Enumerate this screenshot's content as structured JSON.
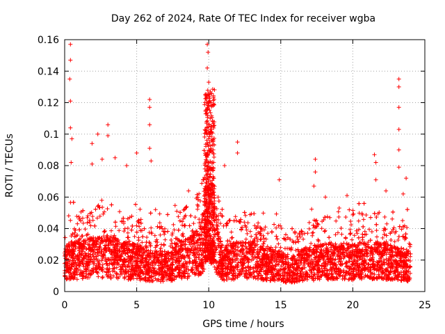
{
  "chart_data": {
    "type": "scatter",
    "title": "Day 262 of 2024, Rate Of TEC Index for receiver wgba",
    "xlabel": "GPS time / hours",
    "ylabel": "ROTI / TECUs",
    "xlim": [
      0,
      25
    ],
    "ylim": [
      0,
      0.16
    ],
    "xticks": [
      0,
      5,
      10,
      15,
      20,
      25
    ],
    "yticks": [
      0,
      0.02,
      0.04,
      0.06,
      0.08,
      0.1,
      0.12,
      0.14,
      0.16
    ],
    "xtick_labels": [
      "0",
      "5",
      "10",
      "15",
      "20",
      "25"
    ],
    "ytick_labels": [
      "0",
      "0.02",
      "0.04",
      "0.06",
      "0.08",
      "0.1",
      "0.12",
      "0.14",
      "0.16"
    ],
    "grid": true,
    "marker": "+",
    "color": "#ff0000",
    "baseline_profile": {
      "hours": [
        0,
        0.5,
        1,
        2,
        3,
        4,
        5,
        6,
        7,
        8,
        9,
        9.5,
        9.8,
        10,
        10.3,
        10.7,
        11,
        12,
        13,
        14,
        15,
        15.5,
        16,
        17,
        18,
        19,
        20,
        21,
        22,
        23,
        24
      ],
      "median": [
        0.02,
        0.022,
        0.022,
        0.024,
        0.025,
        0.022,
        0.021,
        0.018,
        0.018,
        0.022,
        0.026,
        0.03,
        0.045,
        0.055,
        0.045,
        0.025,
        0.02,
        0.022,
        0.022,
        0.02,
        0.018,
        0.015,
        0.017,
        0.02,
        0.021,
        0.022,
        0.021,
        0.022,
        0.022,
        0.02,
        0.018
      ]
    },
    "peaks": [
      {
        "x": 0.4,
        "y": 0.157
      },
      {
        "x": 0.4,
        "y": 0.147
      },
      {
        "x": 0.35,
        "y": 0.135
      },
      {
        "x": 0.4,
        "y": 0.121
      },
      {
        "x": 0.4,
        "y": 0.104
      },
      {
        "x": 0.5,
        "y": 0.097
      },
      {
        "x": 0.45,
        "y": 0.082
      },
      {
        "x": 2.3,
        "y": 0.1
      },
      {
        "x": 3.0,
        "y": 0.106
      },
      {
        "x": 3.0,
        "y": 0.099
      },
      {
        "x": 1.9,
        "y": 0.094
      },
      {
        "x": 1.9,
        "y": 0.081
      },
      {
        "x": 2.6,
        "y": 0.084
      },
      {
        "x": 3.5,
        "y": 0.085
      },
      {
        "x": 4.3,
        "y": 0.08
      },
      {
        "x": 5.0,
        "y": 0.088
      },
      {
        "x": 5.9,
        "y": 0.122
      },
      {
        "x": 5.9,
        "y": 0.117
      },
      {
        "x": 5.9,
        "y": 0.106
      },
      {
        "x": 5.9,
        "y": 0.091
      },
      {
        "x": 6.0,
        "y": 0.083
      },
      {
        "x": 8.6,
        "y": 0.064
      },
      {
        "x": 9.9,
        "y": 0.157
      },
      {
        "x": 9.95,
        "y": 0.152
      },
      {
        "x": 9.9,
        "y": 0.142
      },
      {
        "x": 10.0,
        "y": 0.133
      },
      {
        "x": 9.9,
        "y": 0.125
      },
      {
        "x": 10.0,
        "y": 0.118
      },
      {
        "x": 10.1,
        "y": 0.11
      },
      {
        "x": 9.9,
        "y": 0.104
      },
      {
        "x": 10.0,
        "y": 0.097
      },
      {
        "x": 11.1,
        "y": 0.08
      },
      {
        "x": 12.0,
        "y": 0.095
      },
      {
        "x": 12.0,
        "y": 0.088
      },
      {
        "x": 14.9,
        "y": 0.071
      },
      {
        "x": 17.4,
        "y": 0.084
      },
      {
        "x": 17.4,
        "y": 0.076
      },
      {
        "x": 17.3,
        "y": 0.067
      },
      {
        "x": 18.1,
        "y": 0.06
      },
      {
        "x": 19.6,
        "y": 0.061
      },
      {
        "x": 21.5,
        "y": 0.087
      },
      {
        "x": 21.6,
        "y": 0.082
      },
      {
        "x": 21.6,
        "y": 0.071
      },
      {
        "x": 22.3,
        "y": 0.064
      },
      {
        "x": 23.2,
        "y": 0.135
      },
      {
        "x": 23.2,
        "y": 0.13
      },
      {
        "x": 23.2,
        "y": 0.117
      },
      {
        "x": 23.2,
        "y": 0.103
      },
      {
        "x": 23.2,
        "y": 0.09
      },
      {
        "x": 23.2,
        "y": 0.079
      },
      {
        "x": 23.7,
        "y": 0.072
      },
      {
        "x": 23.5,
        "y": 0.062
      }
    ]
  }
}
